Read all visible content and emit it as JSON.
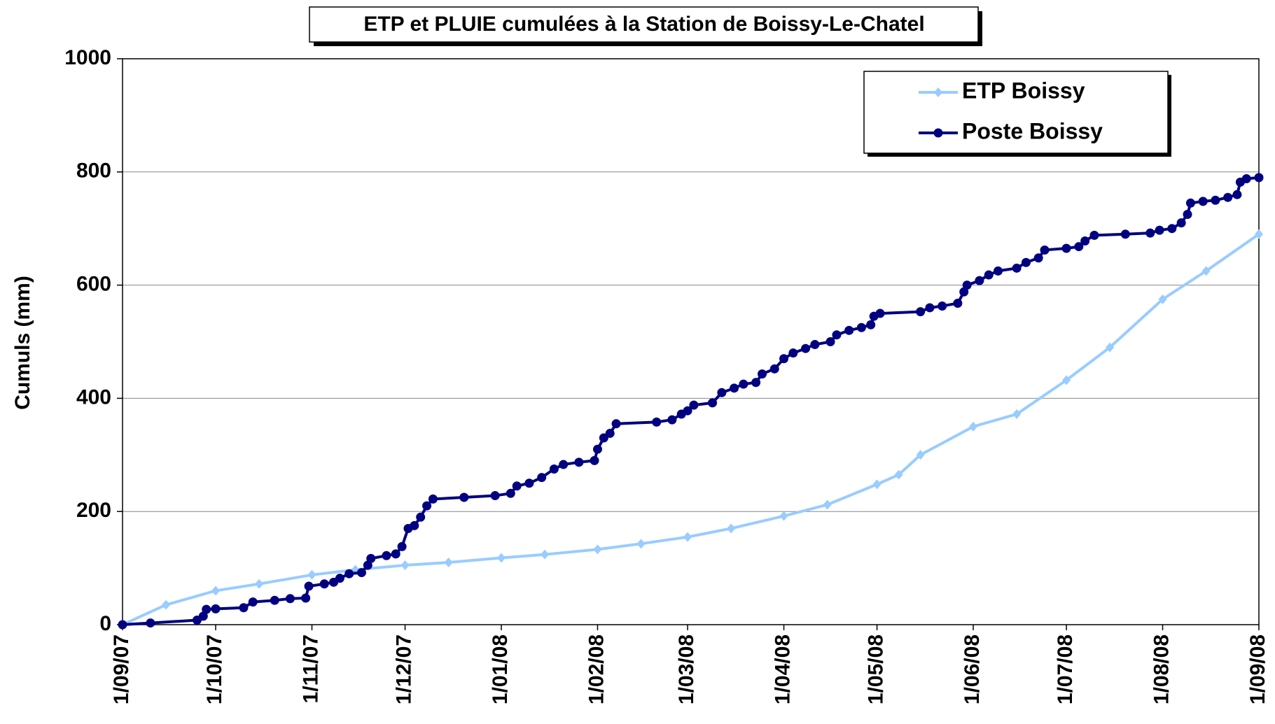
{
  "chart_data": {
    "type": "line",
    "title": "ETP et PLUIE cumulées à la Station de Boissy-Le-Chatel",
    "y_label": "Cumuls (mm)",
    "ylim": [
      0,
      1000
    ],
    "yticks": [
      0,
      200,
      400,
      600,
      800,
      1000
    ],
    "xlim": [
      "2007-09-01",
      "2008-09-01"
    ],
    "xticks": [
      {
        "value": "2007-09-01",
        "label": "1/09/07"
      },
      {
        "value": "2007-10-01",
        "label": "1/10/07"
      },
      {
        "value": "2007-11-01",
        "label": "1/11/07"
      },
      {
        "value": "2007-12-01",
        "label": "1/12/07"
      },
      {
        "value": "2008-01-01",
        "label": "1/01/08"
      },
      {
        "value": "2008-02-01",
        "label": "1/02/08"
      },
      {
        "value": "2008-03-01",
        "label": "1/03/08"
      },
      {
        "value": "2008-04-01",
        "label": "1/04/08"
      },
      {
        "value": "2008-05-01",
        "label": "1/05/08"
      },
      {
        "value": "2008-06-01",
        "label": "1/06/08"
      },
      {
        "value": "2008-07-01",
        "label": "1/07/08"
      },
      {
        "value": "2008-08-01",
        "label": "1/08/08"
      },
      {
        "value": "2008-09-01",
        "label": "1/09/08"
      }
    ],
    "grid": true,
    "legend": "top-right",
    "series": [
      {
        "name": "ETP Boissy",
        "color": "#99ccff",
        "marker": "diamond",
        "x": [
          "2007-09-01",
          "2007-09-15",
          "2007-10-01",
          "2007-10-15",
          "2007-11-01",
          "2007-11-15",
          "2007-12-01",
          "2007-12-15",
          "2008-01-01",
          "2008-01-15",
          "2008-02-01",
          "2008-02-15",
          "2008-03-01",
          "2008-03-15",
          "2008-04-01",
          "2008-04-15",
          "2008-05-01",
          "2008-05-08",
          "2008-05-15",
          "2008-06-01",
          "2008-06-15",
          "2008-07-01",
          "2008-07-15",
          "2008-08-01",
          "2008-08-15",
          "2008-09-01"
        ],
        "values": [
          0,
          35,
          60,
          72,
          88,
          97,
          105,
          110,
          118,
          124,
          133,
          143,
          155,
          170,
          192,
          212,
          248,
          265,
          300,
          350,
          372,
          432,
          490,
          575,
          625,
          690
        ]
      },
      {
        "name": "Poste Boissy",
        "color": "#000080",
        "marker": "circle",
        "x": [
          "2007-09-01",
          "2007-09-10",
          "2007-09-25",
          "2007-09-27",
          "2007-09-28",
          "2007-10-01",
          "2007-10-10",
          "2007-10-13",
          "2007-10-20",
          "2007-10-25",
          "2007-10-30",
          "2007-10-31",
          "2007-11-05",
          "2007-11-08",
          "2007-11-10",
          "2007-11-13",
          "2007-11-17",
          "2007-11-19",
          "2007-11-20",
          "2007-11-25",
          "2007-11-28",
          "2007-11-30",
          "2007-12-02",
          "2007-12-04",
          "2007-12-06",
          "2007-12-08",
          "2007-12-10",
          "2007-12-20",
          "2007-12-30",
          "2008-01-04",
          "2008-01-06",
          "2008-01-10",
          "2008-01-14",
          "2008-01-18",
          "2008-01-21",
          "2008-01-26",
          "2008-01-31",
          "2008-02-01",
          "2008-02-03",
          "2008-02-05",
          "2008-02-07",
          "2008-02-20",
          "2008-02-25",
          "2008-02-28",
          "2008-03-01",
          "2008-03-03",
          "2008-03-09",
          "2008-03-12",
          "2008-03-16",
          "2008-03-19",
          "2008-03-23",
          "2008-03-25",
          "2008-03-29",
          "2008-04-01",
          "2008-04-04",
          "2008-04-08",
          "2008-04-11",
          "2008-04-16",
          "2008-04-18",
          "2008-04-22",
          "2008-04-26",
          "2008-04-29",
          "2008-04-30",
          "2008-05-02",
          "2008-05-15",
          "2008-05-18",
          "2008-05-22",
          "2008-05-27",
          "2008-05-29",
          "2008-05-30",
          "2008-06-03",
          "2008-06-06",
          "2008-06-09",
          "2008-06-15",
          "2008-06-18",
          "2008-06-22",
          "2008-06-24",
          "2008-07-01",
          "2008-07-05",
          "2008-07-07",
          "2008-07-10",
          "2008-07-20",
          "2008-07-28",
          "2008-07-31",
          "2008-08-04",
          "2008-08-07",
          "2008-08-09",
          "2008-08-10",
          "2008-08-14",
          "2008-08-18",
          "2008-08-22",
          "2008-08-25",
          "2008-08-26",
          "2008-08-28",
          "2008-09-01"
        ],
        "values": [
          0,
          3,
          8,
          15,
          27,
          28,
          30,
          40,
          43,
          46,
          47,
          68,
          72,
          75,
          82,
          90,
          92,
          105,
          117,
          122,
          125,
          138,
          170,
          175,
          190,
          210,
          222,
          225,
          228,
          232,
          245,
          250,
          260,
          275,
          283,
          287,
          290,
          310,
          330,
          338,
          355,
          358,
          362,
          372,
          378,
          388,
          392,
          410,
          418,
          425,
          428,
          443,
          452,
          470,
          480,
          488,
          495,
          500,
          512,
          520,
          525,
          530,
          545,
          550,
          553,
          560,
          563,
          568,
          588,
          600,
          608,
          618,
          625,
          630,
          640,
          648,
          662,
          665,
          668,
          678,
          688,
          690,
          692,
          697,
          700,
          710,
          725,
          745,
          748,
          750,
          755,
          760,
          782,
          788,
          790
        ]
      }
    ]
  }
}
